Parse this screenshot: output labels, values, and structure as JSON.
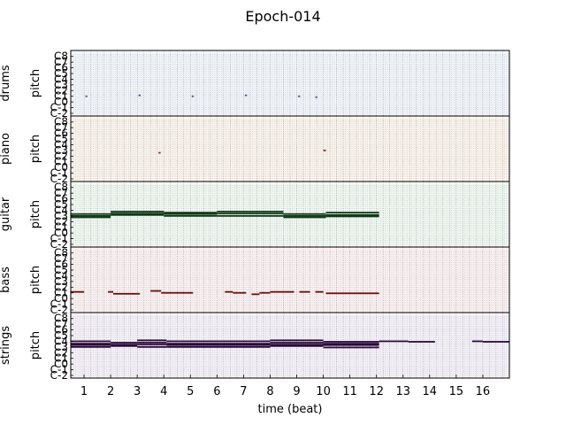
{
  "chart_data": {
    "type": "pianoroll",
    "title": "Epoch-014",
    "xlabel": "time (beat)",
    "x_ticks": [
      "1",
      "2",
      "3",
      "4",
      "5",
      "6",
      "7",
      "8",
      "9",
      "10",
      "11",
      "12",
      "13",
      "14",
      "15",
      "16"
    ],
    "x_range": [
      0.5,
      17.0
    ],
    "pitch_ylabel": "pitch",
    "pitch_ticks": [
      "C-2",
      "C-1",
      "C0",
      "C1",
      "C2",
      "C3",
      "C4",
      "C5",
      "C6",
      "C7",
      "C8"
    ],
    "pitch_range": [
      0,
      127
    ],
    "grid": true,
    "tracks": [
      {
        "name": "drums",
        "bg": "#f2f6fb",
        "note_color": "#4a5a8a",
        "notes": [
          {
            "start": 1.05,
            "end": 1.13,
            "pitch": 36
          },
          {
            "start": 3.05,
            "end": 3.13,
            "pitch": 38
          },
          {
            "start": 5.05,
            "end": 5.13,
            "pitch": 36
          },
          {
            "start": 7.05,
            "end": 7.13,
            "pitch": 38
          },
          {
            "start": 9.05,
            "end": 9.13,
            "pitch": 36
          },
          {
            "start": 9.7,
            "end": 9.78,
            "pitch": 34
          }
        ]
      },
      {
        "name": "piano",
        "bg": "#fbf4ec",
        "note_color": "#7a3a1a",
        "notes": [
          {
            "start": 3.8,
            "end": 3.88,
            "pitch": 55
          },
          {
            "start": 10.0,
            "end": 10.1,
            "pitch": 60
          }
        ]
      },
      {
        "name": "guitar",
        "bg": "#f1f8f1",
        "note_color": "#103a18",
        "notes": [
          {
            "start": 0.5,
            "end": 2.0,
            "pitch": 64
          },
          {
            "start": 0.5,
            "end": 2.0,
            "pitch": 60
          },
          {
            "start": 0.5,
            "end": 2.0,
            "pitch": 57
          },
          {
            "start": 2.0,
            "end": 4.0,
            "pitch": 69
          },
          {
            "start": 2.0,
            "end": 4.0,
            "pitch": 65
          },
          {
            "start": 2.0,
            "end": 4.0,
            "pitch": 62
          },
          {
            "start": 4.0,
            "end": 6.0,
            "pitch": 67
          },
          {
            "start": 4.0,
            "end": 6.0,
            "pitch": 64
          },
          {
            "start": 4.0,
            "end": 6.0,
            "pitch": 60
          },
          {
            "start": 6.0,
            "end": 8.5,
            "pitch": 69
          },
          {
            "start": 6.0,
            "end": 8.5,
            "pitch": 65
          },
          {
            "start": 6.0,
            "end": 8.5,
            "pitch": 60
          },
          {
            "start": 8.5,
            "end": 10.1,
            "pitch": 64
          },
          {
            "start": 8.5,
            "end": 10.1,
            "pitch": 60
          },
          {
            "start": 8.5,
            "end": 10.1,
            "pitch": 57
          },
          {
            "start": 10.1,
            "end": 12.1,
            "pitch": 67
          },
          {
            "start": 10.1,
            "end": 12.1,
            "pitch": 62
          },
          {
            "start": 10.1,
            "end": 12.1,
            "pitch": 59
          }
        ]
      },
      {
        "name": "bass",
        "bg": "#fbf1f1",
        "note_color": "#6a1010",
        "notes": [
          {
            "start": 0.5,
            "end": 1.0,
            "pitch": 38
          },
          {
            "start": 1.9,
            "end": 2.1,
            "pitch": 38
          },
          {
            "start": 2.1,
            "end": 3.1,
            "pitch": 34
          },
          {
            "start": 3.5,
            "end": 3.9,
            "pitch": 40
          },
          {
            "start": 3.9,
            "end": 5.1,
            "pitch": 36
          },
          {
            "start": 6.3,
            "end": 6.6,
            "pitch": 38
          },
          {
            "start": 6.6,
            "end": 7.1,
            "pitch": 36
          },
          {
            "start": 7.3,
            "end": 7.6,
            "pitch": 33
          },
          {
            "start": 7.6,
            "end": 8.0,
            "pitch": 36
          },
          {
            "start": 8.0,
            "end": 8.9,
            "pitch": 38
          },
          {
            "start": 9.1,
            "end": 9.5,
            "pitch": 38
          },
          {
            "start": 9.7,
            "end": 10.0,
            "pitch": 38
          },
          {
            "start": 10.1,
            "end": 12.1,
            "pitch": 35
          }
        ]
      },
      {
        "name": "strings",
        "bg": "#f5f1f8",
        "note_color": "#2a0a3a",
        "notes": [
          {
            "start": 0.5,
            "end": 2.0,
            "pitch": 72
          },
          {
            "start": 0.5,
            "end": 2.0,
            "pitch": 67
          },
          {
            "start": 0.5,
            "end": 2.0,
            "pitch": 64
          },
          {
            "start": 0.5,
            "end": 2.0,
            "pitch": 60
          },
          {
            "start": 2.0,
            "end": 3.0,
            "pitch": 69
          },
          {
            "start": 2.0,
            "end": 3.0,
            "pitch": 65
          },
          {
            "start": 2.0,
            "end": 3.0,
            "pitch": 62
          },
          {
            "start": 3.0,
            "end": 4.1,
            "pitch": 74
          },
          {
            "start": 3.0,
            "end": 4.1,
            "pitch": 69
          },
          {
            "start": 3.0,
            "end": 4.1,
            "pitch": 65
          },
          {
            "start": 3.0,
            "end": 4.1,
            "pitch": 60
          },
          {
            "start": 4.1,
            "end": 8.0,
            "pitch": 72
          },
          {
            "start": 4.1,
            "end": 8.0,
            "pitch": 67
          },
          {
            "start": 4.1,
            "end": 8.0,
            "pitch": 64
          },
          {
            "start": 4.1,
            "end": 8.0,
            "pitch": 60
          },
          {
            "start": 8.0,
            "end": 10.0,
            "pitch": 74
          },
          {
            "start": 8.0,
            "end": 10.0,
            "pitch": 69
          },
          {
            "start": 8.0,
            "end": 10.0,
            "pitch": 65
          },
          {
            "start": 8.0,
            "end": 10.0,
            "pitch": 62
          },
          {
            "start": 10.0,
            "end": 12.1,
            "pitch": 71
          },
          {
            "start": 10.0,
            "end": 12.1,
            "pitch": 67
          },
          {
            "start": 10.0,
            "end": 12.1,
            "pitch": 64
          },
          {
            "start": 10.0,
            "end": 12.1,
            "pitch": 59
          },
          {
            "start": 12.1,
            "end": 13.2,
            "pitch": 72
          },
          {
            "start": 13.2,
            "end": 14.2,
            "pitch": 71
          },
          {
            "start": 15.6,
            "end": 16.0,
            "pitch": 72
          },
          {
            "start": 16.0,
            "end": 17.0,
            "pitch": 71
          }
        ]
      }
    ]
  }
}
